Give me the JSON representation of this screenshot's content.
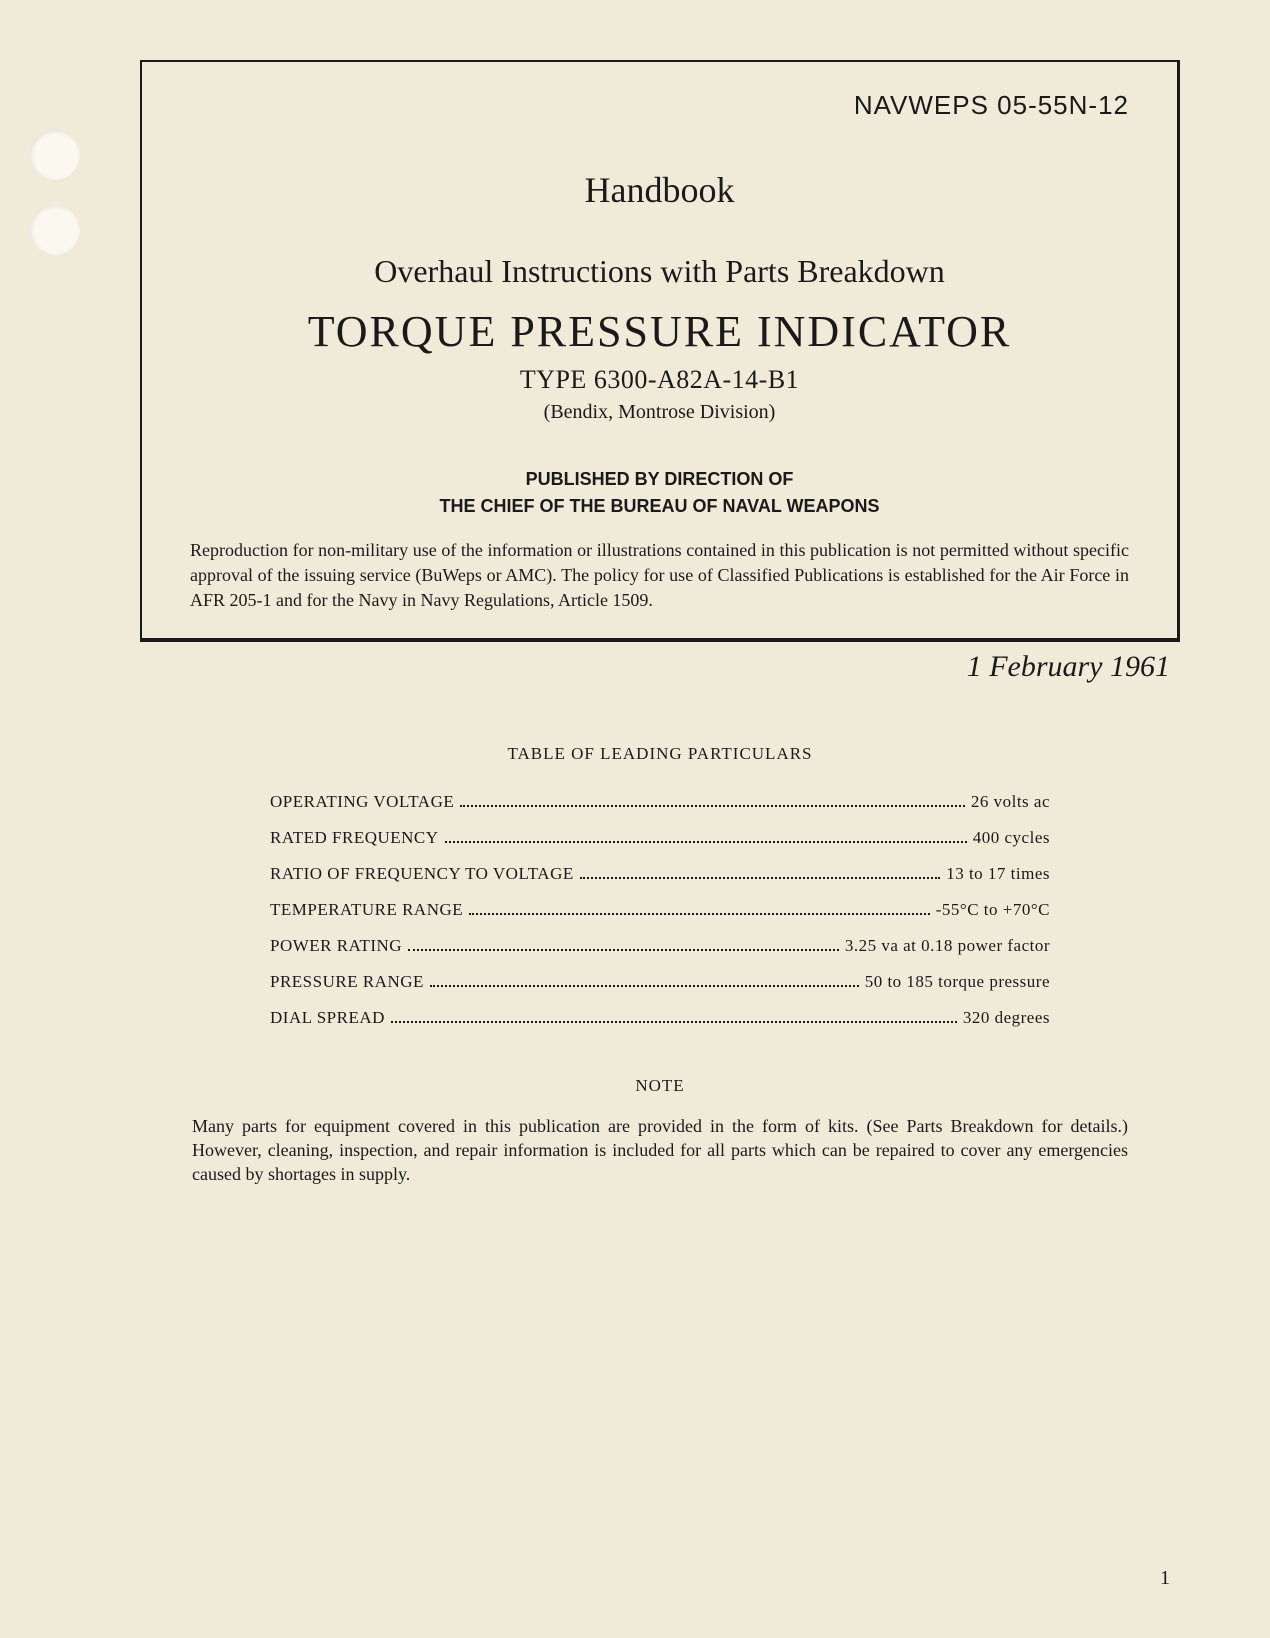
{
  "header": {
    "doc_number": "NAVWEPS 05-55N-12",
    "handbook": "Handbook",
    "subtitle": "Overhaul Instructions with Parts Breakdown",
    "main_title": "TORQUE PRESSURE INDICATOR",
    "type_line": "TYPE 6300-A82A-14-B1",
    "division": "(Bendix, Montrose Division)",
    "publisher_line1": "PUBLISHED BY DIRECTION OF",
    "publisher_line2": "THE CHIEF OF THE BUREAU OF NAVAL WEAPONS",
    "reproduction": "Reproduction for non-military use of the information or illustrations contained in this publication is not permitted without specific approval of the issuing service (BuWeps or AMC). The policy for use of Classified Publications is established for the Air Force in AFR 205-1 and for the Navy in Navy Regulations, Article 1509."
  },
  "date": "1 February 1961",
  "table": {
    "title": "TABLE OF LEADING PARTICULARS",
    "rows": [
      {
        "label": "OPERATING VOLTAGE",
        "value": "26 volts ac"
      },
      {
        "label": "RATED FREQUENCY",
        "value": "400 cycles"
      },
      {
        "label": "RATIO OF FREQUENCY TO VOLTAGE",
        "value": "13 to 17 times"
      },
      {
        "label": "TEMPERATURE RANGE",
        "value": "-55°C to +70°C"
      },
      {
        "label": "POWER RATING",
        "value": "3.25 va at 0.18 power factor"
      },
      {
        "label": "PRESSURE RANGE",
        "value": "50 to 185 torque pressure"
      },
      {
        "label": "DIAL SPREAD",
        "value": "320 degrees"
      }
    ]
  },
  "note": {
    "title": "NOTE",
    "body": "Many parts for equipment covered in this publication are provided in the form of kits. (See Parts Breakdown for details.) However, cleaning, inspection, and repair information is included for all parts which can be repaired to cover any emergencies caused by shortages in supply."
  },
  "page_number": "1"
}
